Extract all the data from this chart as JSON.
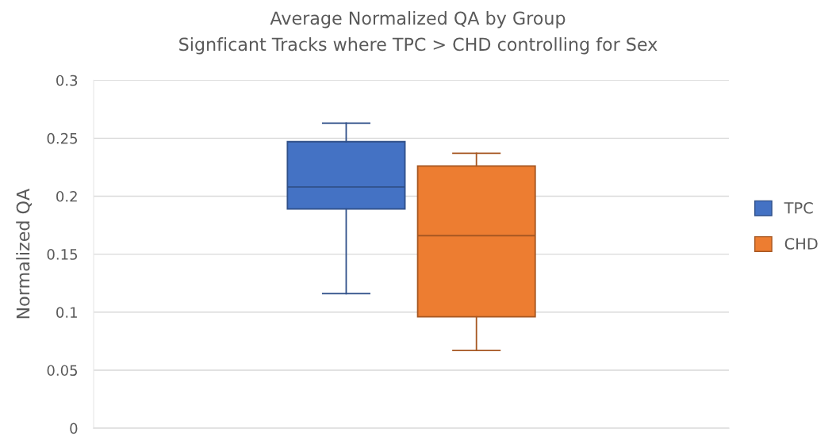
{
  "chart_data": {
    "type": "box",
    "title": "Average Normalized QA by Group",
    "subtitle": "Signficant Tracks where TPC > CHD controlling for Sex",
    "ylabel": "Normalized QA",
    "categories": [
      null
    ],
    "series": [
      {
        "name": "TPC",
        "color": "#4472c4",
        "boxes": [
          {
            "low": 0.116,
            "q1": 0.189,
            "median": 0.208,
            "q3": 0.247,
            "high": 0.263
          }
        ]
      },
      {
        "name": "CHD",
        "color": "#ed7d31",
        "boxes": [
          {
            "low": 0.067,
            "q1": 0.096,
            "median": 0.166,
            "q3": 0.226,
            "high": 0.237
          }
        ]
      }
    ],
    "ylim": [
      0,
      0.3
    ],
    "yticks": [
      0,
      0.05,
      0.1,
      0.15,
      0.2,
      0.25,
      0.3
    ],
    "grid": "y",
    "legend": "right",
    "tick_labels": "y"
  }
}
